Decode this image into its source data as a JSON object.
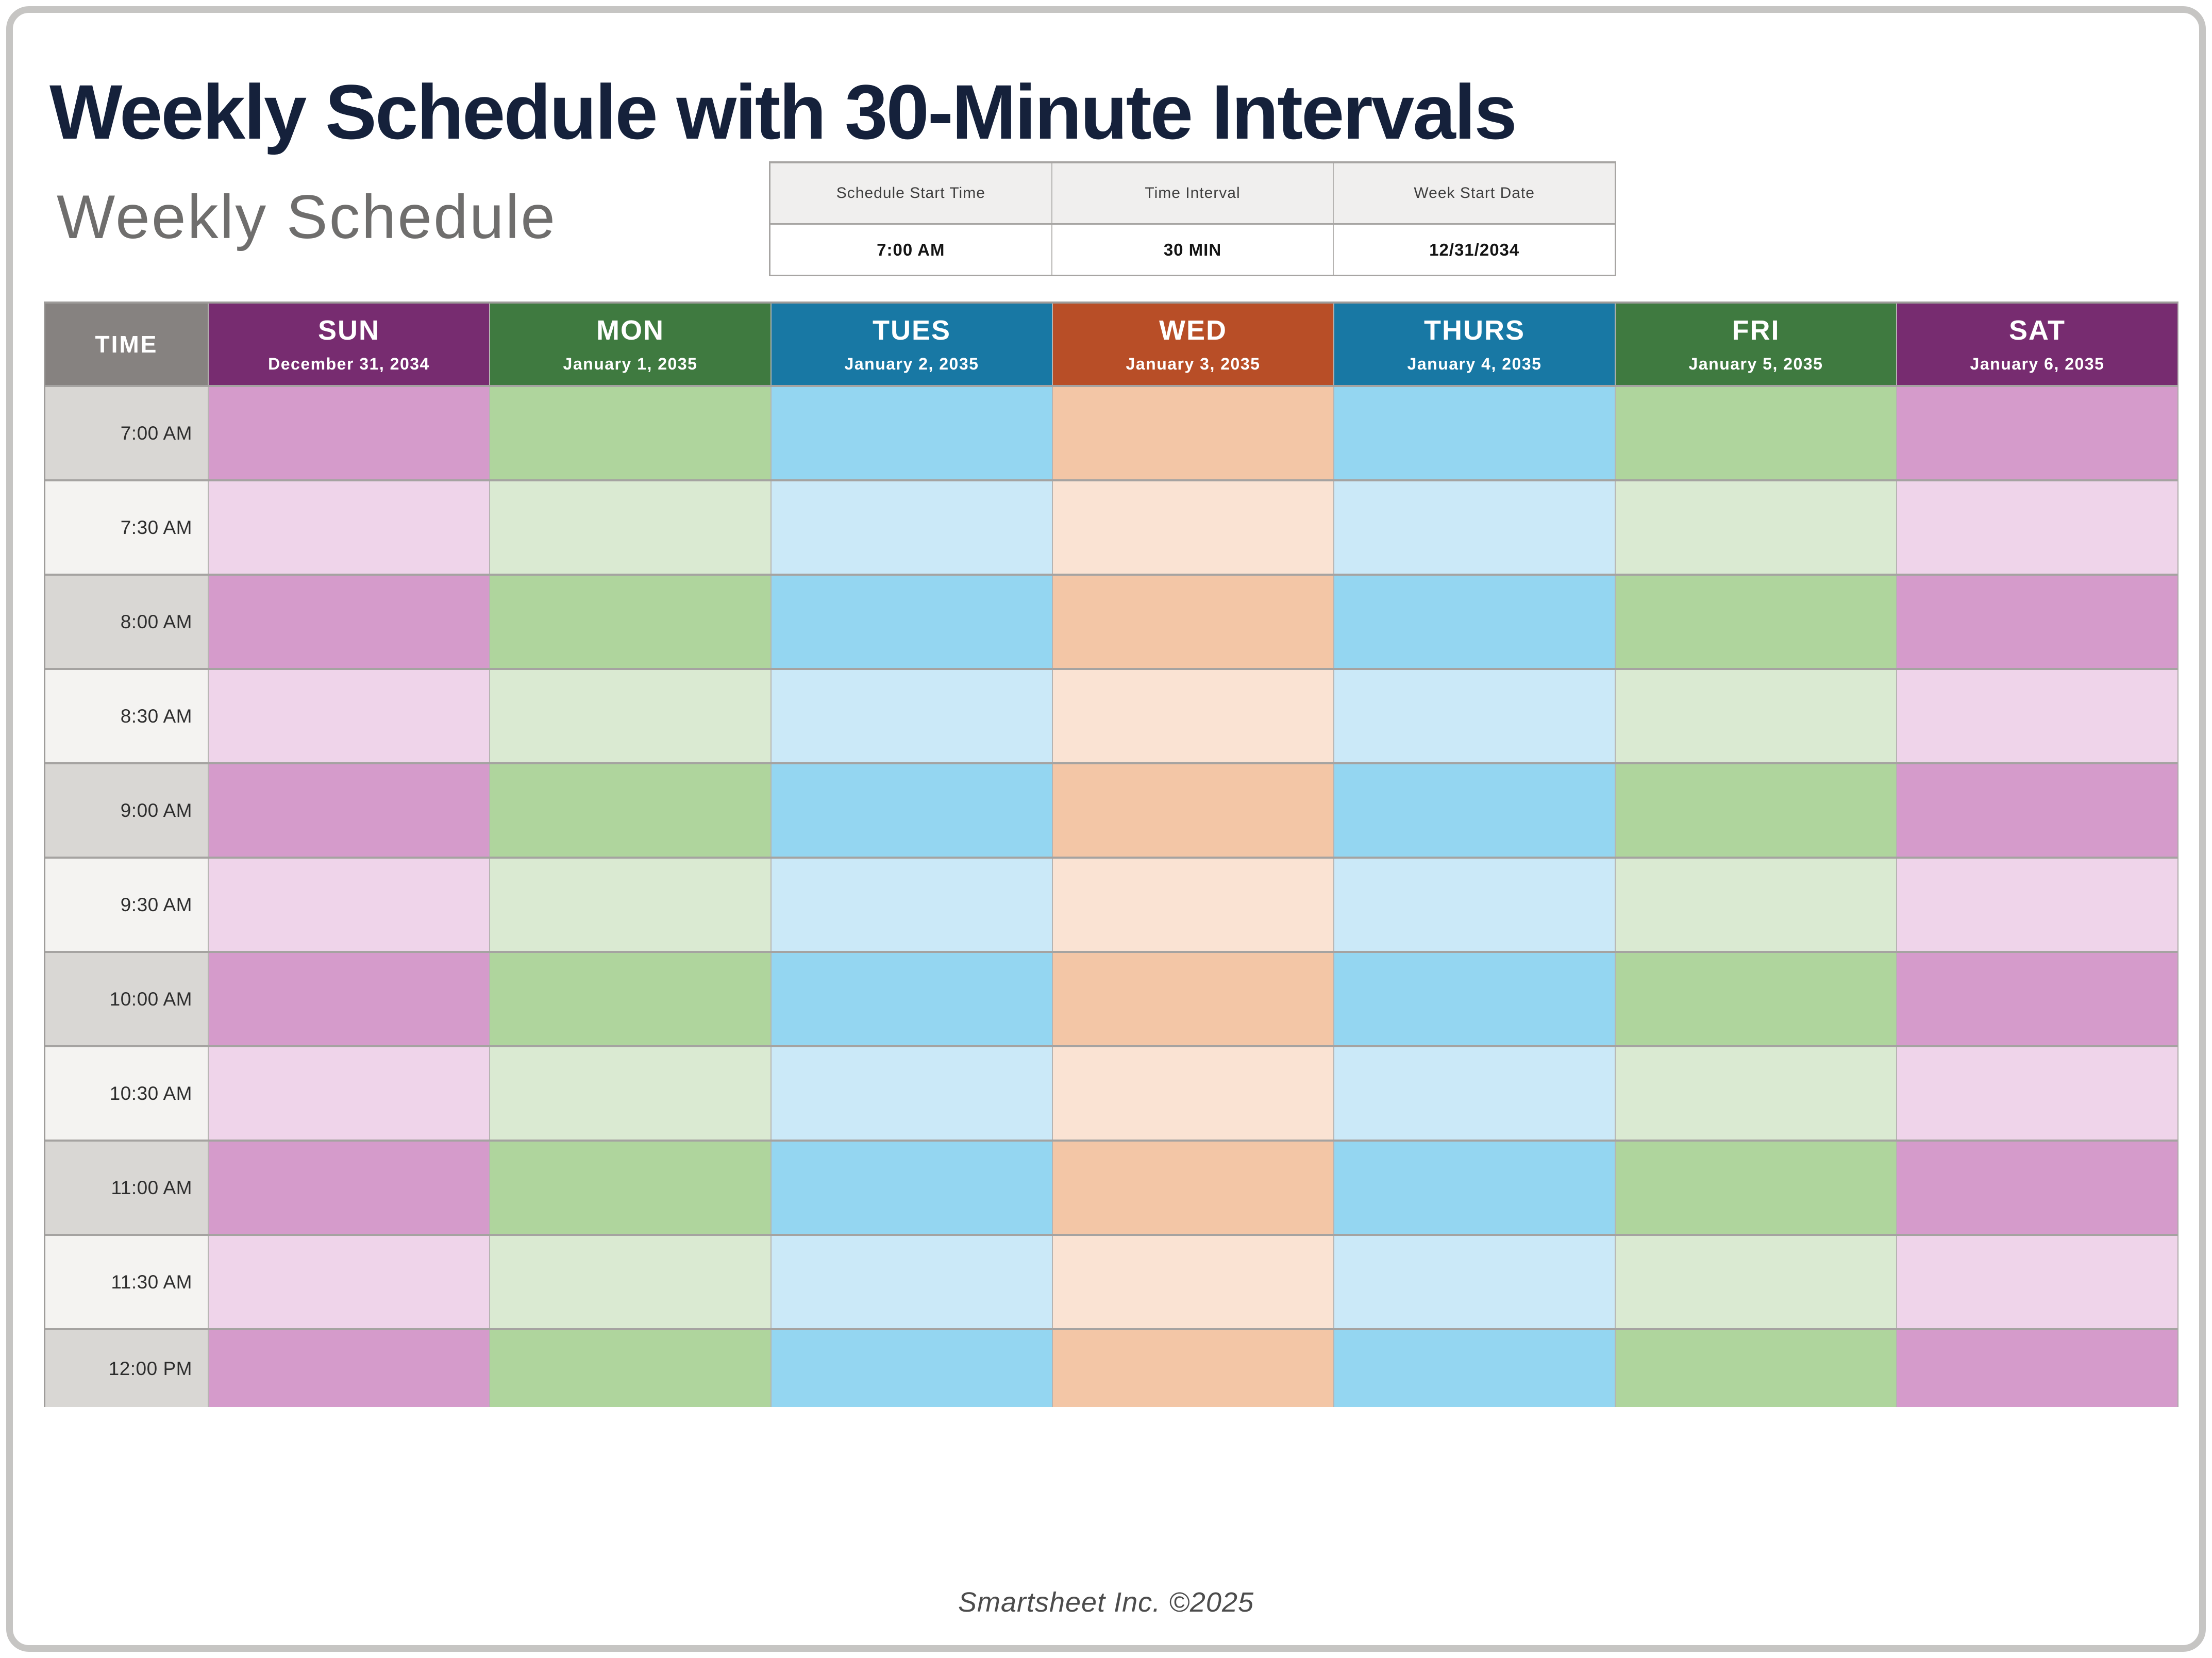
{
  "page": {
    "title": "Weekly Schedule with 30-Minute Intervals",
    "subtitle": "Weekly Schedule",
    "footer": "Smartsheet Inc. ©2025"
  },
  "settings": {
    "columns": [
      {
        "label": "Schedule Start Time",
        "value": "7:00 AM"
      },
      {
        "label": "Time Interval",
        "value": "30 MIN"
      },
      {
        "label": "Week Start Date",
        "value": "12/31/2034"
      }
    ]
  },
  "schedule": {
    "time_header": "TIME",
    "time_column": {
      "header_bg": "#868280",
      "cell_full": "#D9D7D4",
      "cell_half": "#F4F3F1"
    },
    "times": [
      "7:00 AM",
      "7:30 AM",
      "8:00 AM",
      "8:30 AM",
      "9:00 AM",
      "9:30 AM",
      "10:00 AM",
      "10:30 AM",
      "11:00 AM",
      "11:30 AM",
      "12:00 PM"
    ],
    "days": [
      {
        "name": "SUN",
        "date": "December 31, 2034",
        "header_bg": "#772C70",
        "cell_full": "#D59BCB",
        "cell_half": "#EFD4EA"
      },
      {
        "name": "MON",
        "date": "January 1, 2035",
        "header_bg": "#3F7A40",
        "cell_full": "#AFD59D",
        "cell_half": "#DAEAD2"
      },
      {
        "name": "TUES",
        "date": "January 2, 2035",
        "header_bg": "#1878A4",
        "cell_full": "#94D6F1",
        "cell_half": "#CBE9F8"
      },
      {
        "name": "WED",
        "date": "January 3, 2035",
        "header_bg": "#B84E27",
        "cell_full": "#F3C6A6",
        "cell_half": "#FAE3D3"
      },
      {
        "name": "THURS",
        "date": "January 4, 2035",
        "header_bg": "#1878A4",
        "cell_full": "#94D6F1",
        "cell_half": "#CBE9F8"
      },
      {
        "name": "FRI",
        "date": "January 5, 2035",
        "header_bg": "#3F7A40",
        "cell_full": "#AFD59D",
        "cell_half": "#DAEAD2"
      },
      {
        "name": "SAT",
        "date": "January 6, 2035",
        "header_bg": "#772C70",
        "cell_full": "#D59BCB",
        "cell_half": "#EFD4EA"
      }
    ]
  },
  "colors": {
    "page_border": "#C6C5C3",
    "title_text": "#15213B",
    "subtitle_text": "#6F6E6D",
    "grid_row_separator": "#A5A3A1",
    "grid_col_separator": "#B6B4B2"
  }
}
